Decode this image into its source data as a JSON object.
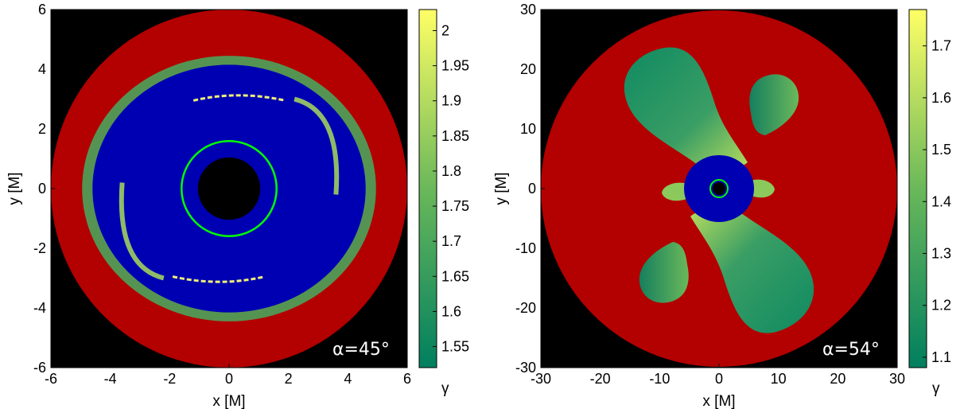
{
  "chart_data": [
    {
      "type": "heatmap",
      "xlabel": "x [M]",
      "ylabel": "y [M]",
      "xlim": [
        -6,
        6
      ],
      "ylim": [
        -6,
        6
      ],
      "xticks": [
        -6,
        -4,
        -2,
        0,
        2,
        4,
        6
      ],
      "yticks": [
        -6,
        -4,
        -2,
        0,
        2,
        4,
        6
      ],
      "annotation": "α=45°",
      "colorbar": {
        "label": "γ",
        "range": [
          1.52,
          2.03
        ],
        "ticks": [
          "2",
          "1.95",
          "1.9",
          "1.85",
          "1.8",
          "1.75",
          "1.7",
          "1.65",
          "1.6",
          "1.55"
        ],
        "colors": [
          "#007f5f",
          "#6ab85a",
          "#ffff66"
        ]
      },
      "regions": {
        "outer_radius": 6.0,
        "blue_region_radius_x": 4.6,
        "blue_region_radius_y": 4.15,
        "black_hole_radius": 1.05,
        "green_circle_radius": 1.6,
        "colors": {
          "outside": "#000000",
          "red": "#b30000",
          "blue": "#0000b3",
          "hole": "#000000",
          "circle": "#00ff00"
        }
      }
    },
    {
      "type": "heatmap",
      "xlabel": "x [M]",
      "ylabel": "y [M]",
      "xlim": [
        -30,
        30
      ],
      "ylim": [
        -30,
        30
      ],
      "xticks": [
        -30,
        -20,
        -10,
        0,
        10,
        20,
        30
      ],
      "yticks": [
        -30,
        -20,
        -10,
        0,
        10,
        20,
        30
      ],
      "annotation": "α=54°",
      "colorbar": {
        "label": "γ",
        "range": [
          1.08,
          1.77
        ],
        "ticks": [
          "1.7",
          "1.6",
          "1.5",
          "1.4",
          "1.3",
          "1.2",
          "1.1"
        ],
        "colors": [
          "#007f5f",
          "#6ab85a",
          "#ffff66"
        ]
      },
      "regions": {
        "outer_radius": 30.0,
        "blue_region_radius": 6.5,
        "black_hole_radius": 1.2,
        "green_circle_radius": 1.7,
        "colors": {
          "outside": "#000000",
          "red": "#b30000",
          "blue": "#0000b3",
          "hole": "#000000",
          "circle": "#00ff00"
        }
      }
    }
  ]
}
